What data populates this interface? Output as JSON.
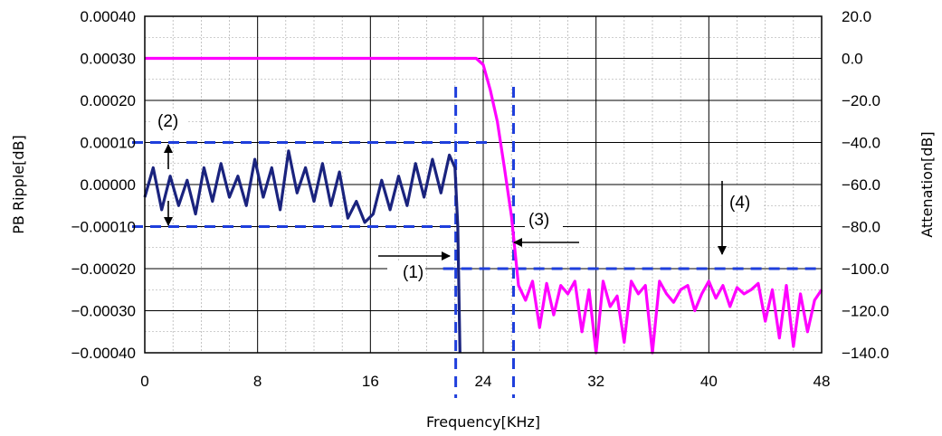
{
  "chart_data": {
    "type": "line",
    "xlabel": "Frequency[KHz]",
    "ylabel_left": "PB Ripple[dB]",
    "ylabel_right": "Attenation[dB]",
    "xlim": [
      0,
      48
    ],
    "ylim_left": [
      -0.0004,
      0.0004
    ],
    "ylim_right": [
      -140,
      20
    ],
    "x_ticks": [
      "0",
      "8",
      "16",
      "24",
      "32",
      "40",
      "48"
    ],
    "y_left_ticks": [
      "0.00040",
      "0.00030",
      "0.00020",
      "0.00010",
      "0.00000",
      "−0.00010",
      "−0.00020",
      "−0.00030",
      "−0.00040"
    ],
    "y_right_ticks": [
      "20.0",
      "0.0",
      "−20.0",
      "−40.0",
      "−60.0",
      "−80.0",
      "−100.0",
      "−120.0",
      "−140.0"
    ],
    "grid": true,
    "minor_grid": true,
    "series": [
      {
        "axis": "left",
        "color": "#1a237e",
        "x": [
          0,
          0.6,
          1.2,
          1.8,
          2.4,
          3.0,
          3.6,
          4.2,
          4.8,
          5.4,
          6.0,
          6.6,
          7.2,
          7.8,
          8.4,
          9.0,
          9.6,
          10.2,
          10.8,
          11.4,
          12.0,
          12.6,
          13.2,
          13.8,
          14.4,
          15.0,
          15.6,
          16.2,
          16.8,
          17.4,
          18.0,
          18.6,
          19.2,
          19.8,
          20.4,
          21.0,
          21.6,
          22.0,
          22.2,
          22.35
        ],
        "y": [
          -3e-05,
          4e-05,
          -6e-05,
          2e-05,
          -5e-05,
          1e-05,
          -7e-05,
          4e-05,
          -4e-05,
          5e-05,
          -3e-05,
          2e-05,
          -5e-05,
          6e-05,
          -3e-05,
          4e-05,
          -6e-05,
          8e-05,
          -2e-05,
          4e-05,
          -4e-05,
          5e-05,
          -5e-05,
          3e-05,
          -8e-05,
          -4e-05,
          -9e-05,
          -7e-05,
          1e-05,
          -6e-05,
          2e-05,
          -5e-05,
          5e-05,
          -3e-05,
          6e-05,
          -2e-05,
          7e-05,
          4e-05,
          -0.0001,
          -0.0004
        ]
      },
      {
        "axis": "right",
        "color": "#ff00ff",
        "x": [
          0,
          23.5,
          24.0,
          24.5,
          25.0,
          25.5,
          26.0,
          26.5,
          27.0,
          27.5,
          28.0,
          28.5,
          29.0,
          29.5,
          30.0,
          30.5,
          31.0,
          31.5,
          32.0,
          32.5,
          33.0,
          33.5,
          34.0,
          34.5,
          35.0,
          35.5,
          36.0,
          36.5,
          37.0,
          37.5,
          38.0,
          38.5,
          39.0,
          39.5,
          40.0,
          40.5,
          41.0,
          41.5,
          42.0,
          42.5,
          43.0,
          43.5,
          44.0,
          44.5,
          45.0,
          45.5,
          46.0,
          46.5,
          47.0,
          47.5,
          48.0
        ],
        "y": [
          0,
          0,
          -3,
          -15,
          -30,
          -52,
          -75,
          -108,
          -115,
          -106,
          -128,
          -107,
          -122,
          -108,
          -112,
          -106,
          -130,
          -110,
          -140,
          -106,
          -118,
          -113,
          -135,
          -106,
          -112,
          -108,
          -140,
          -106,
          -112,
          -116,
          -110,
          -108,
          -120,
          -112,
          -106,
          -114,
          -108,
          -118,
          -109,
          -112,
          -110,
          -107,
          -125,
          -110,
          -133,
          -108,
          -137,
          -112,
          -130,
          -115,
          -110
        ]
      }
    ],
    "reference_lines": [
      {
        "orientation": "horizontal",
        "axis": "left",
        "value": 0.0001,
        "x_from": 0,
        "x_to": 24.3,
        "color": "#1f3fdc",
        "style": "dashed"
      },
      {
        "orientation": "horizontal",
        "axis": "left",
        "value": -0.0001,
        "x_from": 0,
        "x_to": 22.2,
        "color": "#1f3fdc",
        "style": "dashed"
      },
      {
        "orientation": "vertical",
        "value": 22.05,
        "color": "#1f3fdc",
        "style": "dashed"
      },
      {
        "orientation": "vertical",
        "value": 26.15,
        "color": "#1f3fdc",
        "style": "dashed"
      },
      {
        "orientation": "horizontal",
        "axis": "right",
        "value": -100,
        "x_from": 22.05,
        "x_to": 48,
        "color": "#1f3fdc",
        "style": "dashed"
      }
    ],
    "annotations": [
      {
        "text": "(1)",
        "arrow": "right"
      },
      {
        "text": "(2)",
        "arrow": "double-vertical"
      },
      {
        "text": "(3)",
        "arrow": "left"
      },
      {
        "text": "(4)",
        "arrow": "down"
      }
    ]
  }
}
